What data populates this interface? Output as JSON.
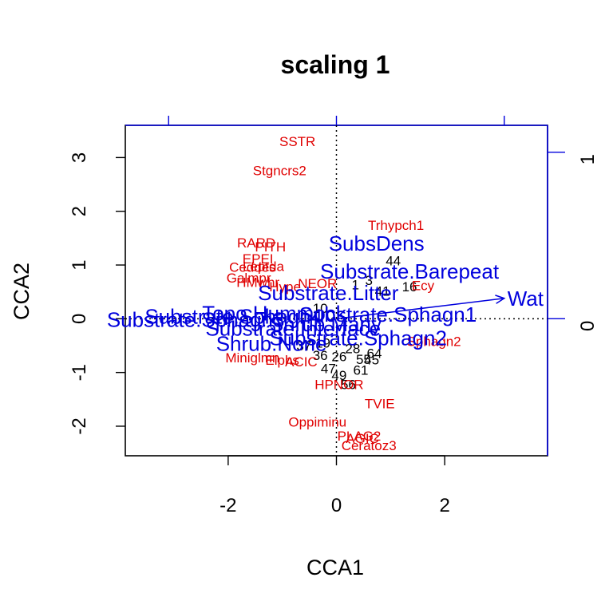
{
  "chart_data": {
    "type": "scatter",
    "title": "scaling 1",
    "xlabel": "CCA1",
    "ylabel": "CCA2",
    "xlim": [
      -3.9,
      3.9
    ],
    "ylim": [
      -2.55,
      3.6
    ],
    "x_ticks": [
      -2,
      0,
      2
    ],
    "y_ticks": [
      -2,
      -1,
      0,
      1,
      2,
      3
    ],
    "x_tick_labels": [
      "-2",
      "0",
      "2"
    ],
    "y_tick_labels": [
      "-2",
      "-1",
      "0",
      "1",
      "2",
      "3"
    ],
    "biplot_axis_ticks": {
      "top": [
        -1,
        0,
        1
      ],
      "right": [
        0,
        1
      ],
      "right_labels": [
        "0",
        "1"
      ]
    },
    "grid": false,
    "colors": {
      "species": "#e00000",
      "sites": "#000000",
      "environment": "#0000dd",
      "axes": "#000000"
    },
    "species": [
      {
        "label": "SSTR",
        "x": -0.72,
        "y": 3.3
      },
      {
        "label": "Stgncrs2",
        "x": -1.05,
        "y": 2.76
      },
      {
        "label": "Trhypch1",
        "x": 1.1,
        "y": 1.74
      },
      {
        "label": "RARD",
        "x": -1.48,
        "y": 1.42
      },
      {
        "label": "PITH",
        "x": -1.22,
        "y": 1.34
      },
      {
        "label": "EPEI",
        "x": -1.45,
        "y": 1.12
      },
      {
        "label": "Leptda",
        "x": -1.35,
        "y": 0.98
      },
      {
        "label": "Ceddes",
        "x": -1.55,
        "y": 0.96
      },
      {
        "label": "Galmpr",
        "x": -1.62,
        "y": 0.76
      },
      {
        "label": "HMwhr",
        "x": -1.45,
        "y": 0.68
      },
      {
        "label": "NEOR",
        "x": -0.35,
        "y": 0.66
      },
      {
        "label": "Ecy",
        "x": 1.6,
        "y": 0.62
      },
      {
        "label": "Hype",
        "x": -0.95,
        "y": 0.6
      },
      {
        "label": "Sphagn2",
        "x": 1.8,
        "y": -0.42
      },
      {
        "label": "Miniglmn",
        "x": -1.55,
        "y": -0.72
      },
      {
        "label": "Elphs",
        "x": -1.0,
        "y": -0.77
      },
      {
        "label": "ACIC",
        "x": -0.65,
        "y": -0.8
      },
      {
        "label": "HPNOR",
        "x": 0.05,
        "y": -1.22
      },
      {
        "label": "TVIE",
        "x": 0.8,
        "y": -1.58
      },
      {
        "label": "Oppiminu",
        "x": -0.35,
        "y": -1.92
      },
      {
        "label": "PLAG2",
        "x": 0.42,
        "y": -2.18
      },
      {
        "label": "AGIC",
        "x": 0.48,
        "y": -2.22
      },
      {
        "label": "Ceratoz3",
        "x": 0.6,
        "y": -2.36
      }
    ],
    "sites": [
      {
        "label": "44",
        "x": 1.05,
        "y": 1.08
      },
      {
        "label": "3",
        "x": 0.6,
        "y": 0.72
      },
      {
        "label": "1",
        "x": 0.35,
        "y": 0.64
      },
      {
        "label": "41",
        "x": 0.85,
        "y": 0.52
      },
      {
        "label": "16",
        "x": 1.35,
        "y": 0.6
      },
      {
        "label": "10",
        "x": -0.3,
        "y": 0.2
      },
      {
        "label": "37",
        "x": -0.6,
        "y": -0.5
      },
      {
        "label": "19",
        "x": -0.25,
        "y": -0.45
      },
      {
        "label": "28",
        "x": 0.3,
        "y": -0.55
      },
      {
        "label": "36",
        "x": -0.3,
        "y": -0.68
      },
      {
        "label": "26",
        "x": 0.05,
        "y": -0.7
      },
      {
        "label": "55",
        "x": 0.5,
        "y": -0.75
      },
      {
        "label": "64",
        "x": 0.7,
        "y": -0.64
      },
      {
        "label": "45",
        "x": 0.65,
        "y": -0.76
      },
      {
        "label": "47",
        "x": -0.15,
        "y": -0.92
      },
      {
        "label": "61",
        "x": 0.45,
        "y": -0.95
      },
      {
        "label": "49",
        "x": 0.05,
        "y": -1.05
      },
      {
        "label": "56",
        "x": 0.22,
        "y": -1.22
      }
    ],
    "environment": [
      {
        "label": "SubsDens",
        "x": 0.74,
        "y": 1.4,
        "arrow": false
      },
      {
        "label": "Substrate.Barepeat",
        "x": 1.35,
        "y": 0.88,
        "arrow": false
      },
      {
        "label": "Substrate.Litter",
        "x": -0.15,
        "y": 0.48,
        "arrow": false
      },
      {
        "label": "Topo.Hummock",
        "x": -1.15,
        "y": 0.1,
        "arrow": false
      },
      {
        "label": "Substrate.Sphagn1",
        "x": 0.95,
        "y": 0.08,
        "arrow": false
      },
      {
        "label": "Substrate.Sphagn4",
        "x": -1.9,
        "y": 0.04,
        "arrow": false
      },
      {
        "label": "Substrate.Sphagn3",
        "x": -2.6,
        "y": -0.02,
        "arrow": false
      },
      {
        "label": "Shrub.Many",
        "x": -0.2,
        "y": -0.1,
        "arrow": false
      },
      {
        "label": "Substrate.Interface",
        "x": -0.8,
        "y": -0.18,
        "arrow": false
      },
      {
        "label": "Substrate.Sphagn2",
        "x": 0.4,
        "y": -0.36,
        "arrow": false
      },
      {
        "label": "Shrub.None",
        "x": -1.2,
        "y": -0.46,
        "arrow": false
      },
      {
        "label": "WatrCont",
        "x": 3.1,
        "y": 0.38,
        "arrow": true,
        "display": "Wat"
      }
    ]
  }
}
